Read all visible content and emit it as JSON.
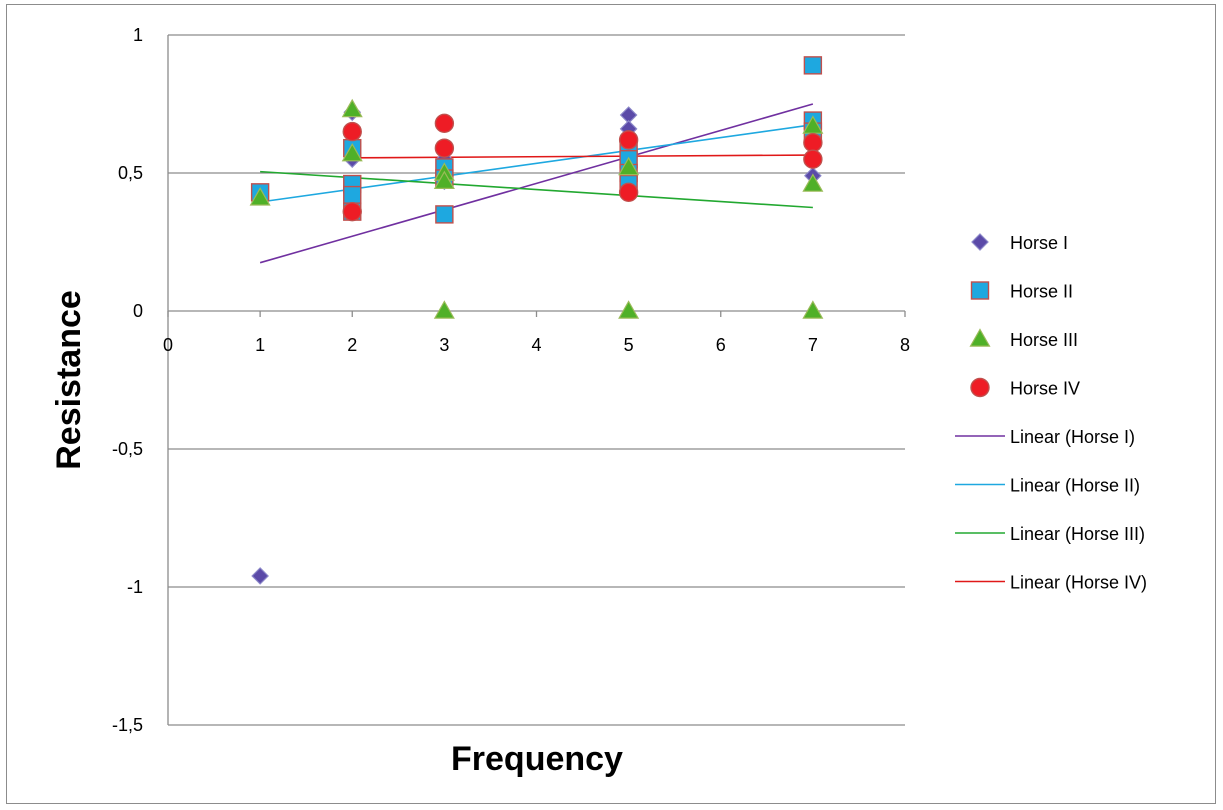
{
  "chart_data": {
    "type": "scatter",
    "xlabel": "Frequency",
    "ylabel": "Resistance",
    "xlim": [
      0,
      8
    ],
    "ylim": [
      -1.5,
      1
    ],
    "x_ticks": [
      "0",
      "1",
      "2",
      "3",
      "4",
      "5",
      "6",
      "7",
      "8"
    ],
    "y_ticks": [
      "1",
      "0,5",
      "0",
      "-0,5",
      "-1",
      "-1,5"
    ],
    "y_tick_values": [
      1,
      0.5,
      0,
      -0.5,
      -1,
      -1.5
    ],
    "grid": "horizontal",
    "legend_position": "right",
    "series": [
      {
        "name": "Horse I",
        "marker": "diamond",
        "color": "#5b4aa8",
        "points": [
          [
            1,
            -0.96
          ],
          [
            2,
            0.72
          ],
          [
            2,
            0.55
          ],
          [
            2,
            0.45
          ],
          [
            3,
            0.47
          ],
          [
            3,
            0.55
          ],
          [
            5,
            0.71
          ],
          [
            5,
            0.66
          ],
          [
            5,
            0.6
          ],
          [
            5,
            0.5
          ],
          [
            7,
            0.49
          ],
          [
            7,
            0.6
          ]
        ]
      },
      {
        "name": "Horse II",
        "marker": "square",
        "color": "#1ea8e0",
        "points": [
          [
            1,
            0.43
          ],
          [
            2,
            0.59
          ],
          [
            2,
            0.46
          ],
          [
            2,
            0.42
          ],
          [
            2,
            0.36
          ],
          [
            3,
            0.52
          ],
          [
            3,
            0.48
          ],
          [
            3,
            0.35
          ],
          [
            5,
            0.59
          ],
          [
            5,
            0.55
          ],
          [
            5,
            0.5
          ],
          [
            5,
            0.46
          ],
          [
            7,
            0.89
          ],
          [
            7,
            0.69
          ],
          [
            7,
            0.65
          ]
        ]
      },
      {
        "name": "Horse III",
        "marker": "triangle",
        "color": "#4fb028",
        "points": [
          [
            1,
            0.41
          ],
          [
            2,
            0.73
          ],
          [
            2,
            0.57
          ],
          [
            3,
            0.5
          ],
          [
            3,
            0.47
          ],
          [
            3,
            0.0
          ],
          [
            5,
            0.52
          ],
          [
            5,
            0.0
          ],
          [
            7,
            0.67
          ],
          [
            7,
            0.46
          ],
          [
            7,
            0.0
          ]
        ]
      },
      {
        "name": "Horse IV",
        "marker": "circle",
        "color": "#ee1c25",
        "points": [
          [
            2,
            0.65
          ],
          [
            2,
            0.36
          ],
          [
            3,
            0.68
          ],
          [
            3,
            0.59
          ],
          [
            5,
            0.62
          ],
          [
            5,
            0.43
          ],
          [
            7,
            0.61
          ],
          [
            7,
            0.55
          ]
        ]
      }
    ],
    "trendlines": [
      {
        "name": "Linear (Horse I)",
        "color": "#7030a0",
        "x": [
          1,
          7
        ],
        "y": [
          0.175,
          0.75
        ]
      },
      {
        "name": "Linear (Horse II)",
        "color": "#1ea8e0",
        "x": [
          1,
          7
        ],
        "y": [
          0.395,
          0.675
        ]
      },
      {
        "name": "Linear (Horse III)",
        "color": "#22a830",
        "x": [
          1,
          7
        ],
        "y": [
          0.505,
          0.375
        ]
      },
      {
        "name": "Linear (Horse IV)",
        "color": "#e01818",
        "x": [
          2,
          7
        ],
        "y": [
          0.555,
          0.565
        ]
      }
    ]
  }
}
